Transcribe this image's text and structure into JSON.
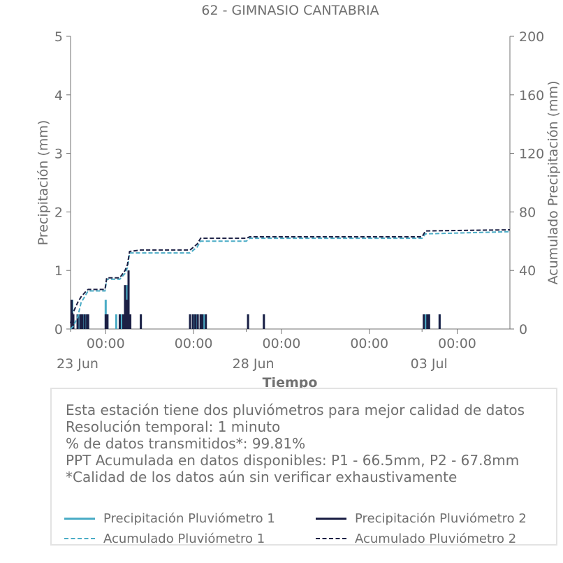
{
  "chart_data": {
    "type": "bar+line",
    "title": "62 - GIMNASIO CANTABRIA",
    "xlabel": "Tiempo",
    "ylabel_left": "Precipitación (mm)",
    "ylabel_right": "Acumulado Precipitación (mm)",
    "ylim_left": [
      0,
      5
    ],
    "ylim_right": [
      0,
      200
    ],
    "yticks_left": [
      "0",
      "1",
      "2",
      "3",
      "4",
      "5"
    ],
    "yticks_right": [
      "0",
      "40",
      "80",
      "120",
      "160",
      "200"
    ],
    "xlim_days": [
      0,
      12.5
    ],
    "x_minor_ticks_days": [
      0,
      5,
      10
    ],
    "x_major_ticks": [
      {
        "day": 1,
        "label": "00:00"
      },
      {
        "day": 3.5,
        "label": "00:00"
      },
      {
        "day": 6,
        "label": "00:00"
      },
      {
        "day": 8.5,
        "label": "00:00"
      },
      {
        "day": 11,
        "label": "00:00"
      }
    ],
    "x_date_labels": [
      {
        "day": 0,
        "label": "23 Jun"
      },
      {
        "day": 5,
        "label": "28 Jun"
      },
      {
        "day": 10,
        "label": "03 Jul"
      }
    ],
    "series": [
      {
        "name": "Precipitación Pluviómetro 1",
        "color": "#4bacc6",
        "style": "bars",
        "points": [
          [
            0.05,
            0.5
          ],
          [
            0.22,
            0.25
          ],
          [
            0.3,
            0.25
          ],
          [
            0.35,
            0.25
          ],
          [
            0.42,
            0.25
          ],
          [
            0.5,
            0.25
          ],
          [
            1.0,
            0.5
          ],
          [
            1.05,
            0.25
          ],
          [
            1.3,
            0.25
          ],
          [
            1.45,
            0.25
          ],
          [
            1.55,
            0.5
          ],
          [
            1.6,
            0.75
          ],
          [
            1.65,
            1.0
          ],
          [
            2.0,
            0.25
          ],
          [
            3.4,
            0.25
          ],
          [
            3.5,
            0.25
          ],
          [
            3.6,
            0.25
          ],
          [
            3.7,
            0.25
          ],
          [
            3.8,
            0.25
          ],
          [
            5.05,
            0.25
          ],
          [
            5.5,
            0.25
          ],
          [
            10.1,
            0.25
          ],
          [
            10.2,
            0.25
          ],
          [
            10.5,
            0.25
          ]
        ]
      },
      {
        "name": "Precipitación Pluviómetro 2",
        "color": "#1c2045",
        "style": "bars",
        "points": [
          [
            0.03,
            0.5
          ],
          [
            0.08,
            0.25
          ],
          [
            0.2,
            0.25
          ],
          [
            0.28,
            0.25
          ],
          [
            0.33,
            0.25
          ],
          [
            0.4,
            0.25
          ],
          [
            0.47,
            0.25
          ],
          [
            0.5,
            0.25
          ],
          [
            1.0,
            0.25
          ],
          [
            1.05,
            0.25
          ],
          [
            1.4,
            0.25
          ],
          [
            1.5,
            0.25
          ],
          [
            1.55,
            0.75
          ],
          [
            1.6,
            0.5
          ],
          [
            1.65,
            1.0
          ],
          [
            1.7,
            0.25
          ],
          [
            2.0,
            0.25
          ],
          [
            3.4,
            0.25
          ],
          [
            3.48,
            0.25
          ],
          [
            3.55,
            0.25
          ],
          [
            3.62,
            0.25
          ],
          [
            3.7,
            0.25
          ],
          [
            3.75,
            0.25
          ],
          [
            3.85,
            0.25
          ],
          [
            5.05,
            0.25
          ],
          [
            5.5,
            0.25
          ],
          [
            10.05,
            0.25
          ],
          [
            10.15,
            0.25
          ],
          [
            10.2,
            0.25
          ],
          [
            10.5,
            0.25
          ]
        ]
      },
      {
        "name": "Acumulado Pluviómetro 1",
        "color": "#4bacc6",
        "style": "dashed",
        "axis": "right",
        "points": [
          [
            0,
            0
          ],
          [
            0.08,
            2
          ],
          [
            0.2,
            8
          ],
          [
            0.3,
            18
          ],
          [
            0.45,
            24
          ],
          [
            0.5,
            26
          ],
          [
            0.98,
            26
          ],
          [
            1.03,
            34
          ],
          [
            1.4,
            34
          ],
          [
            1.55,
            38
          ],
          [
            1.62,
            42
          ],
          [
            1.68,
            52
          ],
          [
            3.4,
            52
          ],
          [
            3.6,
            56
          ],
          [
            3.7,
            60
          ],
          [
            5.0,
            60
          ],
          [
            5.1,
            62
          ],
          [
            10.0,
            62
          ],
          [
            10.1,
            65
          ],
          [
            12.5,
            66.5
          ]
        ]
      },
      {
        "name": "Acumulado Pluviómetro 2",
        "color": "#1c2045",
        "style": "dashed",
        "axis": "right",
        "points": [
          [
            0,
            4
          ],
          [
            0.05,
            10
          ],
          [
            0.2,
            18
          ],
          [
            0.3,
            22
          ],
          [
            0.45,
            26
          ],
          [
            0.5,
            27
          ],
          [
            0.98,
            27
          ],
          [
            1.03,
            35
          ],
          [
            1.4,
            35
          ],
          [
            1.55,
            40
          ],
          [
            1.62,
            44
          ],
          [
            1.68,
            53
          ],
          [
            2.0,
            54
          ],
          [
            3.4,
            54
          ],
          [
            3.6,
            58
          ],
          [
            3.7,
            62
          ],
          [
            5.0,
            62
          ],
          [
            5.1,
            63
          ],
          [
            10.0,
            63
          ],
          [
            10.1,
            67
          ],
          [
            12.5,
            67.8
          ]
        ]
      }
    ],
    "grid": false,
    "legend_position": "bottom"
  },
  "info": {
    "lines": [
      "Esta estación tiene dos pluviómetros para mejor calidad de datos",
      "Resolución temporal: 1 minuto",
      "% de datos transmitidos*: 99.81%",
      "PPT Acumulada en datos disponibles: P1 - 66.5mm, P2 - 67.8mm",
      "*Calidad de los datos aún sin verificar exhaustivamente"
    ]
  },
  "legend": [
    {
      "label": "Precipitación Pluviómetro 1",
      "color": "#4bacc6",
      "style": "solid"
    },
    {
      "label": "Precipitación Pluviómetro 2",
      "color": "#1c2045",
      "style": "solid"
    },
    {
      "label": "Acumulado Pluviómetro 1",
      "color": "#4bacc6",
      "style": "dashed"
    },
    {
      "label": "Acumulado Pluviómetro 2",
      "color": "#1c2045",
      "style": "dashed"
    }
  ]
}
